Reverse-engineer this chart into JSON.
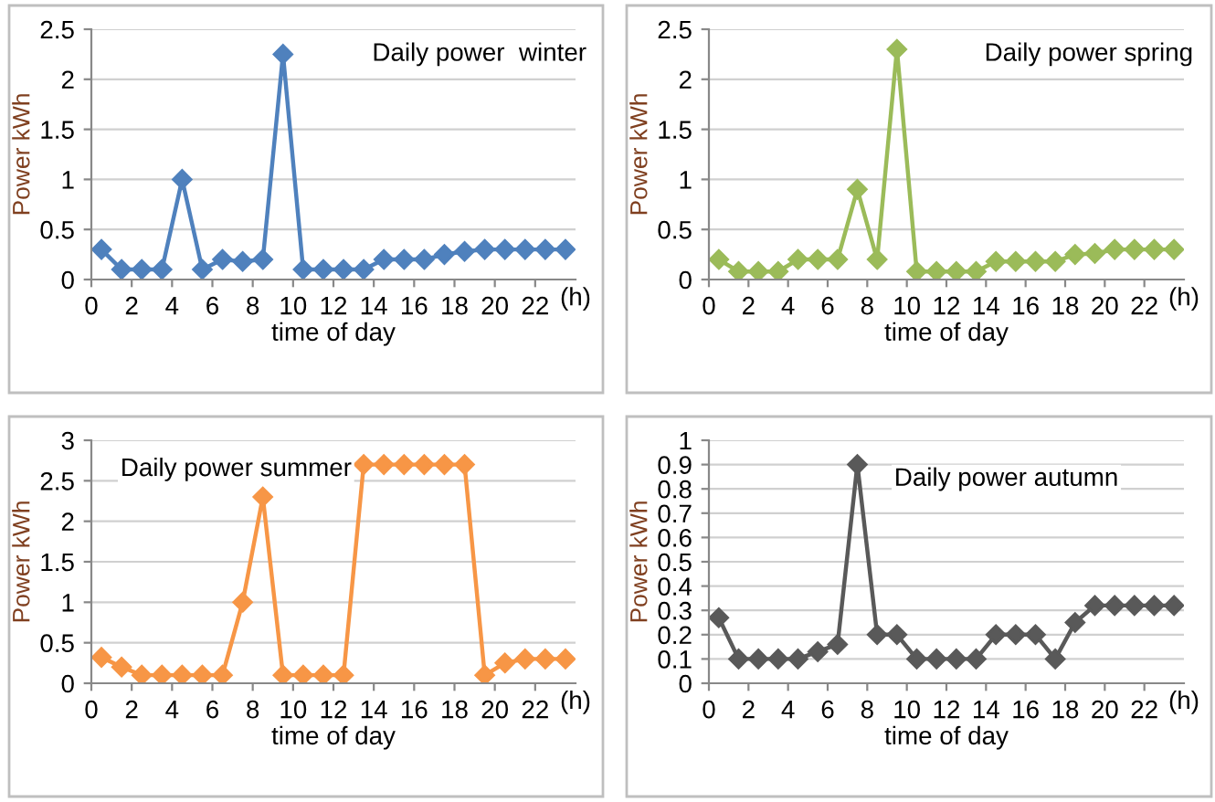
{
  "chart_data": [
    {
      "type": "line",
      "title": "Daily power  winter",
      "xlabel": "time of day",
      "ylabel": "Power kWh",
      "annotations": [
        "(h)"
      ],
      "marker": "diamond",
      "grid": "y",
      "xlim": [
        0,
        24
      ],
      "ylim": [
        0,
        2.5
      ],
      "xticks": [
        0,
        2,
        4,
        6,
        8,
        10,
        12,
        14,
        16,
        18,
        20,
        22
      ],
      "yticks": [
        0,
        0.5,
        1,
        1.5,
        2,
        2.5
      ],
      "x": [
        0.5,
        1.5,
        2.5,
        3.5,
        4.5,
        5.5,
        6.5,
        7.5,
        8.5,
        9.5,
        10.5,
        11.5,
        12.5,
        13.5,
        14.5,
        15.5,
        16.5,
        17.5,
        18.5,
        19.5,
        20.5,
        21.5,
        22.5,
        23.5
      ],
      "series": [
        {
          "color": "#4f81bd",
          "values": [
            0.3,
            0.1,
            0.1,
            0.1,
            1.0,
            0.1,
            0.2,
            0.18,
            0.2,
            2.25,
            0.1,
            0.1,
            0.1,
            0.1,
            0.2,
            0.2,
            0.2,
            0.25,
            0.28,
            0.3,
            0.3,
            0.3,
            0.3,
            0.3
          ]
        }
      ]
    },
    {
      "type": "line",
      "title": "Daily power spring",
      "xlabel": "time of day",
      "ylabel": "Power kWh",
      "annotations": [
        "(h)"
      ],
      "marker": "diamond",
      "grid": "y",
      "xlim": [
        0,
        24
      ],
      "ylim": [
        0,
        2.5
      ],
      "xticks": [
        0,
        2,
        4,
        6,
        8,
        10,
        12,
        14,
        16,
        18,
        20,
        22
      ],
      "yticks": [
        0,
        0.5,
        1,
        1.5,
        2,
        2.5
      ],
      "x": [
        0.5,
        1.5,
        2.5,
        3.5,
        4.5,
        5.5,
        6.5,
        7.5,
        8.5,
        9.5,
        10.5,
        11.5,
        12.5,
        13.5,
        14.5,
        15.5,
        16.5,
        17.5,
        18.5,
        19.5,
        20.5,
        21.5,
        22.5,
        23.5
      ],
      "series": [
        {
          "color": "#9bbb59",
          "values": [
            0.2,
            0.08,
            0.08,
            0.08,
            0.2,
            0.2,
            0.2,
            0.9,
            0.2,
            2.3,
            0.08,
            0.08,
            0.08,
            0.08,
            0.18,
            0.18,
            0.18,
            0.18,
            0.25,
            0.26,
            0.3,
            0.3,
            0.3,
            0.3
          ]
        }
      ]
    },
    {
      "type": "line",
      "title": "Daily power summer",
      "xlabel": "time of day",
      "ylabel": "Power kWh",
      "annotations": [
        "(h)"
      ],
      "marker": "diamond",
      "grid": "y",
      "xlim": [
        0,
        24
      ],
      "ylim": [
        0,
        3
      ],
      "xticks": [
        0,
        2,
        4,
        6,
        8,
        10,
        12,
        14,
        16,
        18,
        20,
        22
      ],
      "yticks": [
        0,
        0.5,
        1,
        1.5,
        2,
        2.5,
        3
      ],
      "x": [
        0.5,
        1.5,
        2.5,
        3.5,
        4.5,
        5.5,
        6.5,
        7.5,
        8.5,
        9.5,
        10.5,
        11.5,
        12.5,
        13.5,
        14.5,
        15.5,
        16.5,
        17.5,
        18.5,
        19.5,
        20.5,
        21.5,
        22.5,
        23.5
      ],
      "series": [
        {
          "color": "#f79646",
          "values": [
            0.32,
            0.2,
            0.1,
            0.1,
            0.1,
            0.1,
            0.1,
            1.0,
            2.3,
            0.1,
            0.1,
            0.1,
            0.1,
            2.7,
            2.7,
            2.7,
            2.7,
            2.7,
            2.7,
            0.1,
            0.25,
            0.3,
            0.3,
            0.3
          ]
        }
      ]
    },
    {
      "type": "line",
      "title": "Daily power autumn",
      "xlabel": "time of day",
      "ylabel": "Power kWh",
      "annotations": [
        "(h)"
      ],
      "marker": "diamond",
      "grid": "y",
      "xlim": [
        0,
        24
      ],
      "ylim": [
        0,
        1
      ],
      "xticks": [
        0,
        2,
        4,
        6,
        8,
        10,
        12,
        14,
        16,
        18,
        20,
        22
      ],
      "yticks": [
        0,
        0.1,
        0.2,
        0.3,
        0.4,
        0.5,
        0.6,
        0.7,
        0.8,
        0.9,
        1
      ],
      "x": [
        0.5,
        1.5,
        2.5,
        3.5,
        4.5,
        5.5,
        6.5,
        7.5,
        8.5,
        9.5,
        10.5,
        11.5,
        12.5,
        13.5,
        14.5,
        15.5,
        16.5,
        17.5,
        18.5,
        19.5,
        20.5,
        21.5,
        22.5,
        23.5
      ],
      "series": [
        {
          "color": "#595959",
          "values": [
            0.27,
            0.1,
            0.1,
            0.1,
            0.1,
            0.13,
            0.16,
            0.9,
            0.2,
            0.2,
            0.1,
            0.1,
            0.1,
            0.1,
            0.2,
            0.2,
            0.2,
            0.1,
            0.25,
            0.32,
            0.32,
            0.32,
            0.32,
            0.32
          ]
        }
      ]
    }
  ]
}
